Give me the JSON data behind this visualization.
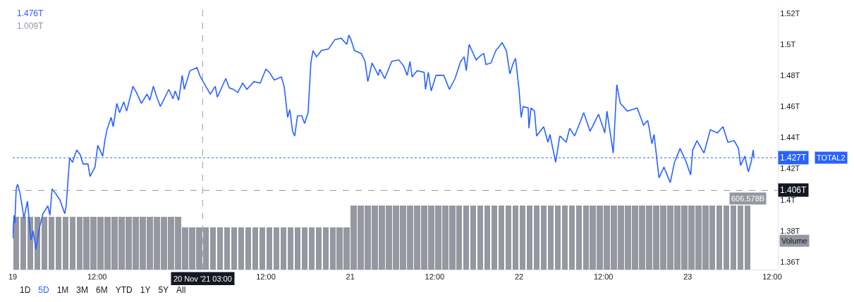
{
  "chart_data": {
    "type": "line",
    "xlim": [
      "2021-11-19T00:00",
      "2021-11-23T12:48"
    ],
    "xticks": [
      {
        "value": "2021-11-19",
        "label": "19"
      },
      {
        "value": "2021-11-19T12:00",
        "label": "12:00"
      },
      {
        "value": "2021-11-20T12:00",
        "label": "12:00"
      },
      {
        "value": "2021-11-21",
        "label": "21"
      },
      {
        "value": "2021-11-21T12:00",
        "label": "12:00"
      },
      {
        "value": "2021-11-22",
        "label": "22"
      },
      {
        "value": "2021-11-22T12:00",
        "label": "12:00"
      },
      {
        "value": "2021-11-23",
        "label": "23"
      },
      {
        "value": "2021-11-23T12:00",
        "label": "12:00"
      }
    ],
    "ylim": [
      1.355,
      1.524
    ],
    "yticks": [
      {
        "value": 1.36,
        "label": "1.36T"
      },
      {
        "value": 1.38,
        "label": "1.38T"
      },
      {
        "value": 1.4,
        "label": "1.4T"
      },
      {
        "value": 1.42,
        "label": "1.42T"
      },
      {
        "value": 1.44,
        "label": "1.44T"
      },
      {
        "value": 1.46,
        "label": "1.46T"
      },
      {
        "value": 1.48,
        "label": "1.48T"
      },
      {
        "value": 1.5,
        "label": "1.5T"
      },
      {
        "value": 1.52,
        "label": "1.52T"
      }
    ],
    "y2lim": [
      0,
      2486
    ],
    "grid": false,
    "legend": "right",
    "marker": "none",
    "line_style": "solid",
    "series": [
      {
        "name": "TOTAL2",
        "color": "#2962ff",
        "x": [
          "2021-11-19T00:00",
          "2021-11-19T00:12",
          "2021-11-19T00:18",
          "2021-11-19T00:30",
          "2021-11-19T00:42",
          "2021-11-19T01:00",
          "2021-11-19T01:18",
          "2021-11-19T01:36",
          "2021-11-19T02:06",
          "2021-11-19T02:36",
          "2021-11-19T02:54",
          "2021-11-19T03:18",
          "2021-11-19T03:48",
          "2021-11-19T04:18",
          "2021-11-19T05:00",
          "2021-11-19T05:18",
          "2021-11-19T05:36",
          "2021-11-19T06:06",
          "2021-11-19T06:42",
          "2021-11-19T07:24",
          "2021-11-19T07:36",
          "2021-11-19T08:06",
          "2021-11-19T08:30",
          "2021-11-19T09:06",
          "2021-11-19T09:36",
          "2021-11-19T10:00",
          "2021-11-19T10:42",
          "2021-11-19T11:00",
          "2021-11-19T11:42",
          "2021-11-19T12:06",
          "2021-11-19T12:48",
          "2021-11-19T13:06",
          "2021-11-19T13:24",
          "2021-11-19T14:00",
          "2021-11-19T14:18",
          "2021-11-19T14:48",
          "2021-11-19T15:12",
          "2021-11-19T15:48",
          "2021-11-19T16:12",
          "2021-11-19T17:06",
          "2021-11-19T17:36",
          "2021-11-19T18:18",
          "2021-11-19T19:06",
          "2021-11-19T19:30",
          "2021-11-19T20:00",
          "2021-11-19T20:30",
          "2021-11-19T21:00",
          "2021-11-19T22:12",
          "2021-11-19T22:48",
          "2021-11-19T23:06",
          "2021-11-19T23:36",
          "2021-11-20T00:06",
          "2021-11-20T00:24",
          "2021-11-20T01:12",
          "2021-11-20T02:12",
          "2021-11-20T02:36",
          "2021-11-20T03:12",
          "2021-11-20T04:06",
          "2021-11-20T04:48",
          "2021-11-20T05:06",
          "2021-11-20T06:18",
          "2021-11-20T06:48",
          "2021-11-20T07:24",
          "2021-11-20T08:00",
          "2021-11-20T08:42",
          "2021-11-20T09:18",
          "2021-11-20T10:18",
          "2021-11-20T11:12",
          "2021-11-20T12:00",
          "2021-11-20T12:30",
          "2021-11-20T13:12",
          "2021-11-20T14:12",
          "2021-11-20T14:36",
          "2021-11-20T15:06",
          "2021-11-20T15:24",
          "2021-11-20T15:48",
          "2021-11-20T16:06",
          "2021-11-20T16:30",
          "2021-11-20T17:06",
          "2021-11-20T17:30",
          "2021-11-20T18:00",
          "2021-11-20T18:24",
          "2021-11-20T18:42",
          "2021-11-20T19:12",
          "2021-11-20T19:54",
          "2021-11-20T20:54",
          "2021-11-20T21:48",
          "2021-11-20T22:42",
          "2021-11-20T23:30",
          "2021-11-20T23:48",
          "2021-11-21T00:06",
          "2021-11-21T00:36",
          "2021-11-21T01:36",
          "2021-11-21T02:06",
          "2021-11-21T02:30",
          "2021-11-21T03:06",
          "2021-11-21T04:00",
          "2021-11-21T04:12",
          "2021-11-21T04:54",
          "2021-11-21T05:54",
          "2021-11-21T06:54",
          "2021-11-21T07:36",
          "2021-11-21T08:06",
          "2021-11-21T08:30",
          "2021-11-21T08:48",
          "2021-11-21T09:30",
          "2021-11-21T10:30",
          "2021-11-21T10:42",
          "2021-11-21T11:06",
          "2021-11-21T11:30",
          "2021-11-21T12:12",
          "2021-11-21T13:18",
          "2021-11-21T14:06",
          "2021-11-21T14:54",
          "2021-11-21T15:42",
          "2021-11-21T16:12",
          "2021-11-21T16:30",
          "2021-11-21T16:54",
          "2021-11-21T17:54",
          "2021-11-21T18:36",
          "2021-11-21T19:00",
          "2021-11-21T19:18",
          "2021-11-21T20:00",
          "2021-11-21T20:42",
          "2021-11-21T21:36",
          "2021-11-21T22:12",
          "2021-11-21T22:42",
          "2021-11-21T23:06",
          "2021-11-21T23:30",
          "2021-11-22T00:00",
          "2021-11-22T00:18",
          "2021-11-22T00:36",
          "2021-11-22T01:18",
          "2021-11-22T01:24",
          "2021-11-22T01:42",
          "2021-11-22T02:12",
          "2021-11-22T02:30",
          "2021-11-22T03:30",
          "2021-11-22T04:06",
          "2021-11-22T04:24",
          "2021-11-22T05:12",
          "2021-11-22T05:48",
          "2021-11-22T06:42",
          "2021-11-22T07:12",
          "2021-11-22T07:54",
          "2021-11-22T08:36",
          "2021-11-22T09:12",
          "2021-11-22T10:06",
          "2021-11-22T11:18",
          "2021-11-22T12:12",
          "2021-11-22T12:30",
          "2021-11-22T13:24",
          "2021-11-22T13:54",
          "2021-11-22T14:24",
          "2021-11-22T15:24",
          "2021-11-22T16:48",
          "2021-11-22T17:42",
          "2021-11-22T18:18",
          "2021-11-22T18:54",
          "2021-11-22T19:12",
          "2021-11-22T19:54",
          "2021-11-22T20:36",
          "2021-11-22T21:30",
          "2021-11-22T22:06",
          "2021-11-22T22:54",
          "2021-11-22T23:42",
          "2021-11-23T00:24",
          "2021-11-23T00:42",
          "2021-11-23T01:18",
          "2021-11-23T02:18",
          "2021-11-23T03:12",
          "2021-11-23T04:12",
          "2021-11-23T05:00",
          "2021-11-23T05:42",
          "2021-11-23T06:36",
          "2021-11-23T07:12",
          "2021-11-23T07:30",
          "2021-11-23T08:06",
          "2021-11-23T08:36",
          "2021-11-23T09:00",
          "2021-11-23T09:18",
          "2021-11-23T09:24"
        ],
        "values": [
          1.375,
          1.39,
          1.385,
          1.407,
          1.41,
          1.405,
          1.397,
          1.388,
          1.399,
          1.374,
          1.38,
          1.368,
          1.382,
          1.391,
          1.396,
          1.39,
          1.407,
          1.404,
          1.4,
          1.391,
          1.396,
          1.427,
          1.424,
          1.432,
          1.429,
          1.423,
          1.423,
          1.415,
          1.421,
          1.435,
          1.428,
          1.438,
          1.445,
          1.453,
          1.447,
          1.462,
          1.456,
          1.463,
          1.457,
          1.473,
          1.469,
          1.462,
          1.468,
          1.464,
          1.473,
          1.466,
          1.46,
          1.471,
          1.465,
          1.47,
          1.464,
          1.48,
          1.471,
          1.483,
          1.485,
          1.48,
          1.475,
          1.468,
          1.473,
          1.466,
          1.478,
          1.472,
          1.471,
          1.469,
          1.475,
          1.471,
          1.476,
          1.475,
          1.484,
          1.482,
          1.477,
          1.479,
          1.473,
          1.453,
          1.458,
          1.444,
          1.441,
          1.454,
          1.454,
          1.449,
          1.456,
          1.488,
          1.496,
          1.492,
          1.496,
          1.497,
          1.503,
          1.504,
          1.5,
          1.506,
          1.503,
          1.496,
          1.494,
          1.489,
          1.476,
          1.488,
          1.48,
          1.484,
          1.478,
          1.489,
          1.49,
          1.486,
          1.48,
          1.489,
          1.479,
          1.483,
          1.482,
          1.471,
          1.482,
          1.47,
          1.48,
          1.48,
          1.471,
          1.478,
          1.489,
          1.492,
          1.483,
          1.5,
          1.49,
          1.493,
          1.494,
          1.487,
          1.488,
          1.496,
          1.501,
          1.496,
          1.481,
          1.487,
          1.491,
          1.471,
          1.453,
          1.46,
          1.459,
          1.446,
          1.459,
          1.457,
          1.441,
          1.447,
          1.437,
          1.442,
          1.424,
          1.441,
          1.437,
          1.446,
          1.441,
          1.449,
          1.456,
          1.444,
          1.455,
          1.443,
          1.457,
          1.43,
          1.474,
          1.462,
          1.457,
          1.459,
          1.448,
          1.451,
          1.436,
          1.442,
          1.414,
          1.421,
          1.411,
          1.424,
          1.433,
          1.425,
          1.416,
          1.432,
          1.438,
          1.43,
          1.445,
          1.443,
          1.447,
          1.437,
          1.438,
          1.433,
          1.422,
          1.428,
          1.418,
          1.424,
          1.432,
          1.427
        ]
      },
      {
        "name": "Volume",
        "type": "bar",
        "axis": "y2",
        "color": "#9598a1",
        "x": [
          "2021-11-19T00:30",
          "2021-11-19T01:30",
          "2021-11-19T02:30",
          "2021-11-19T03:30",
          "2021-11-19T04:30",
          "2021-11-19T05:30",
          "2021-11-19T06:30",
          "2021-11-19T07:30",
          "2021-11-19T08:30",
          "2021-11-19T09:30",
          "2021-11-19T10:30",
          "2021-11-19T11:30",
          "2021-11-19T12:30",
          "2021-11-19T13:30",
          "2021-11-19T14:30",
          "2021-11-19T15:30",
          "2021-11-19T16:30",
          "2021-11-19T17:30",
          "2021-11-19T18:30",
          "2021-11-19T19:30",
          "2021-11-19T20:30",
          "2021-11-19T21:30",
          "2021-11-19T22:30",
          "2021-11-19T23:30",
          "2021-11-20T00:30",
          "2021-11-20T01:30",
          "2021-11-20T02:30",
          "2021-11-20T03:30",
          "2021-11-20T04:30",
          "2021-11-20T05:30",
          "2021-11-20T06:30",
          "2021-11-20T07:30",
          "2021-11-20T08:30",
          "2021-11-20T09:30",
          "2021-11-20T10:30",
          "2021-11-20T11:30",
          "2021-11-20T12:30",
          "2021-11-20T13:30",
          "2021-11-20T14:30",
          "2021-11-20T15:30",
          "2021-11-20T16:30",
          "2021-11-20T17:30",
          "2021-11-20T18:30",
          "2021-11-20T19:30",
          "2021-11-20T20:30",
          "2021-11-20T21:30",
          "2021-11-20T22:30",
          "2021-11-20T23:30",
          "2021-11-21T00:30",
          "2021-11-21T01:30",
          "2021-11-21T02:30",
          "2021-11-21T03:30",
          "2021-11-21T04:30",
          "2021-11-21T05:30",
          "2021-11-21T06:30",
          "2021-11-21T07:30",
          "2021-11-21T08:30",
          "2021-11-21T09:30",
          "2021-11-21T10:30",
          "2021-11-21T11:30",
          "2021-11-21T12:30",
          "2021-11-21T13:30",
          "2021-11-21T14:30",
          "2021-11-21T15:30",
          "2021-11-21T16:30",
          "2021-11-21T17:30",
          "2021-11-21T18:30",
          "2021-11-21T19:30",
          "2021-11-21T20:30",
          "2021-11-21T21:30",
          "2021-11-21T22:30",
          "2021-11-21T23:30",
          "2021-11-22T00:30",
          "2021-11-22T01:30",
          "2021-11-22T02:30",
          "2021-11-22T03:30",
          "2021-11-22T04:30",
          "2021-11-22T05:30",
          "2021-11-22T06:30",
          "2021-11-22T07:30",
          "2021-11-22T08:30",
          "2021-11-22T09:30",
          "2021-11-22T10:30",
          "2021-11-22T11:30",
          "2021-11-22T12:30",
          "2021-11-22T13:30",
          "2021-11-22T14:30",
          "2021-11-22T15:30",
          "2021-11-22T16:30",
          "2021-11-22T17:30",
          "2021-11-22T18:30",
          "2021-11-22T19:30",
          "2021-11-22T20:30",
          "2021-11-22T21:30",
          "2021-11-22T22:30",
          "2021-11-22T23:30",
          "2021-11-23T00:30",
          "2021-11-23T01:30",
          "2021-11-23T02:30",
          "2021-11-23T03:30",
          "2021-11-23T04:30",
          "2021-11-23T05:30",
          "2021-11-23T06:30",
          "2021-11-23T07:30",
          "2021-11-23T08:30"
        ],
        "value_labels": [
          null,
          null,
          null,
          null,
          null,
          null,
          null,
          null,
          null,
          null,
          null,
          null,
          null,
          null,
          null,
          null,
          null,
          null,
          null,
          null,
          null,
          null,
          null,
          null,
          null,
          null,
          null,
          null,
          null,
          null,
          null,
          null,
          null,
          null,
          null,
          null,
          null,
          null,
          null,
          null,
          null,
          null,
          null,
          null,
          null,
          null,
          null,
          null,
          null,
          null,
          null,
          null,
          null,
          null,
          null,
          null,
          null,
          null,
          null,
          null,
          null,
          null,
          null,
          null,
          null,
          null,
          null,
          null,
          null,
          null,
          null,
          null,
          null,
          null,
          null,
          null,
          null,
          null,
          null,
          null,
          null,
          null,
          null,
          null,
          null,
          null,
          null,
          null,
          null,
          null,
          null,
          null,
          null,
          null,
          null,
          null,
          null,
          null,
          null,
          null,
          null,
          null,
          null,
          null,
          "606.578B"
        ],
        "values": [
          500,
          500,
          500,
          500,
          500,
          500,
          500,
          500,
          500,
          500,
          500,
          500,
          500,
          500,
          500,
          500,
          500,
          500,
          500,
          500,
          500,
          500,
          500,
          500,
          400,
          400,
          400,
          400,
          400,
          400,
          400,
          400,
          400,
          400,
          400,
          400,
          400,
          400,
          400,
          400,
          400,
          400,
          400,
          400,
          400,
          400,
          400,
          400,
          606.578,
          606.578,
          606.578,
          606.578,
          606.578,
          606.578,
          606.578,
          606.578,
          606.578,
          606.578,
          606.578,
          606.578,
          606.578,
          606.578,
          606.578,
          606.578,
          606.578,
          606.578,
          606.578,
          606.578,
          606.578,
          606.578,
          606.578,
          606.578,
          606.578,
          606.578,
          606.578,
          606.578,
          606.578,
          606.578,
          606.578,
          606.578,
          606.578,
          606.578,
          606.578,
          606.578,
          606.578,
          606.578,
          606.578,
          606.578,
          606.578,
          606.578,
          606.578,
          606.578,
          606.578,
          606.578,
          606.578,
          606.578,
          606.578,
          606.578,
          606.578,
          606.578,
          606.578,
          606.578,
          606.578,
          606.578,
          606.578
        ]
      }
    ],
    "ref_lines": [
      {
        "axis": "y",
        "value": 1.427,
        "label": "1.427T",
        "color": "#2962ff",
        "line_style": "dotted"
      },
      {
        "axis": "y",
        "value": 1.406,
        "label": "1.406T",
        "color": "#9598a1",
        "line_style": "dashed"
      },
      {
        "axis": "x",
        "value": "2021-11-20T03:00",
        "label": "20 Nov '21 03:00",
        "color": "#9598a1",
        "line_style": "dashed"
      }
    ],
    "annotations": [
      "1.476T",
      "1.009T",
      "1D",
      "5D",
      "1M",
      "3M",
      "6M",
      "YTD",
      "1Y",
      "5Y",
      "All"
    ]
  }
}
